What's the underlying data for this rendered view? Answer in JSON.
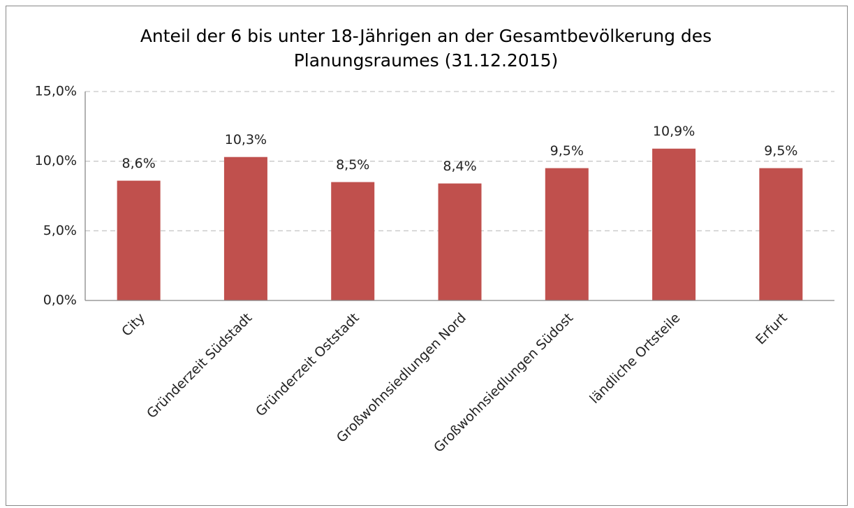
{
  "chart_data": {
    "type": "bar",
    "title": "Anteil der 6 bis unter 18-Jährigen an der Gesamtbevölkerung des Planungsraumes (31.12.2015)",
    "categories": [
      "City",
      "Gründerzeit Südstadt",
      "Gründerzeit Oststadt",
      "Großwohnsiedlungen Nord",
      "Großwohnsiedlungen Südost",
      "ländliche Ortsteile",
      "Erfurt"
    ],
    "values": [
      8.6,
      10.3,
      8.5,
      8.4,
      9.5,
      10.9,
      9.5
    ],
    "value_labels": [
      "8,6%",
      "10,3%",
      "8,5%",
      "8,4%",
      "9,5%",
      "10,9%",
      "9,5%"
    ],
    "color": "#c0504d",
    "ylim": [
      0,
      15
    ],
    "yticks": [
      {
        "value": 0,
        "label": "0,0%"
      },
      {
        "value": 5,
        "label": "5,0%"
      },
      {
        "value": 10,
        "label": "10,0%"
      },
      {
        "value": 15,
        "label": "15,0%"
      }
    ],
    "grid": true
  }
}
